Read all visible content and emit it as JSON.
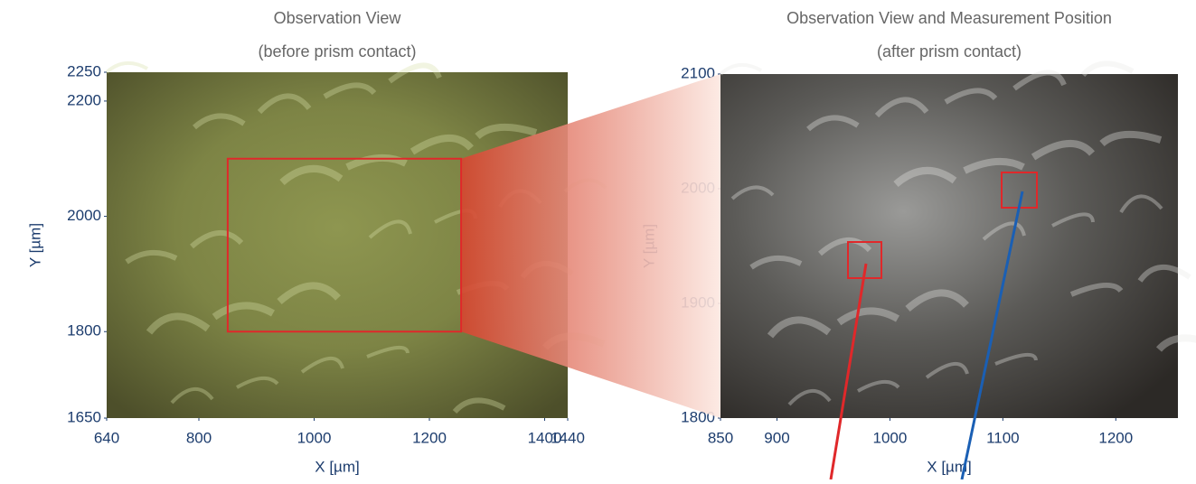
{
  "chart_data": [
    {
      "type": "image",
      "title": "Observation View",
      "subtitle": "(before prism contact)",
      "xlabel": "X [µm]",
      "ylabel": "Y [µm]",
      "xlim": [
        640,
        1440
      ],
      "ylim": [
        1650,
        2250
      ],
      "xticks": [
        640,
        800,
        1000,
        1200,
        1400,
        1440
      ],
      "yticks": [
        1650,
        1800,
        2000,
        2200,
        2250
      ]
    },
    {
      "type": "image",
      "title": "Observation View and Measurement Position",
      "subtitle": "(after prism contact)",
      "xlabel": "X [µm]",
      "ylabel": "Y [µm]",
      "xlim": [
        850,
        1255
      ],
      "ylim": [
        1800,
        2100
      ],
      "xticks": [
        850,
        900,
        1000,
        1100,
        1200
      ],
      "yticks": [
        1800,
        1900,
        2000,
        2100
      ]
    }
  ]
}
